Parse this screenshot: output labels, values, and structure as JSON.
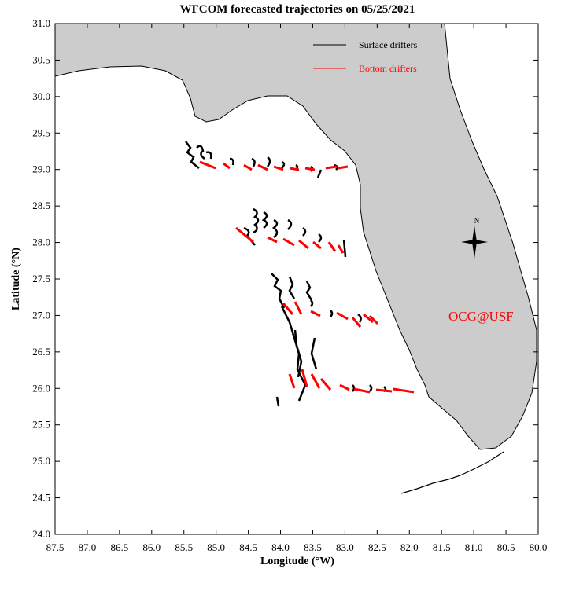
{
  "chart_data": {
    "type": "map",
    "title": "WFCOM forecasted trajectories on 05/25/2021",
    "xlabel": "Longitude (°W)",
    "ylabel": "Latitude (°N)",
    "xlim": [
      87.5,
      80.0
    ],
    "ylim": [
      24.0,
      31.0
    ],
    "xticks": [
      87.5,
      {
        "value": 87,
        "label": "87.0"
      },
      86.5,
      {
        "value": 86,
        "label": "86.0"
      },
      85.5,
      {
        "value": 85,
        "label": "85.0"
      },
      84.5,
      {
        "value": 84,
        "label": "84.0"
      },
      83.5,
      {
        "value": 83,
        "label": "83.0"
      },
      82.5,
      {
        "value": 82,
        "label": "82.0"
      },
      81.5,
      {
        "value": 81,
        "label": "81.0"
      },
      80.5,
      {
        "value": 80,
        "label": "80.0"
      }
    ],
    "yticks": [
      {
        "value": 24,
        "label": "24.0"
      },
      24.5,
      {
        "value": 25,
        "label": "25.0"
      },
      25.5,
      {
        "value": 26,
        "label": "26.0"
      },
      26.5,
      {
        "value": 27,
        "label": "27.0"
      },
      27.5,
      {
        "value": 28,
        "label": "28.0"
      },
      28.5,
      {
        "value": 29,
        "label": "29.0"
      },
      29.5,
      {
        "value": 30,
        "label": "30.0"
      },
      30.5,
      {
        "value": 31,
        "label": "31.0"
      }
    ],
    "legend": [
      {
        "name": "Surface drifters",
        "color": "#000000"
      },
      {
        "name": "Bottom drifters",
        "color": "#ff0000"
      }
    ],
    "annotation": {
      "text": "OCG@USF",
      "color": "#ff0000"
    },
    "compass": "N"
  }
}
